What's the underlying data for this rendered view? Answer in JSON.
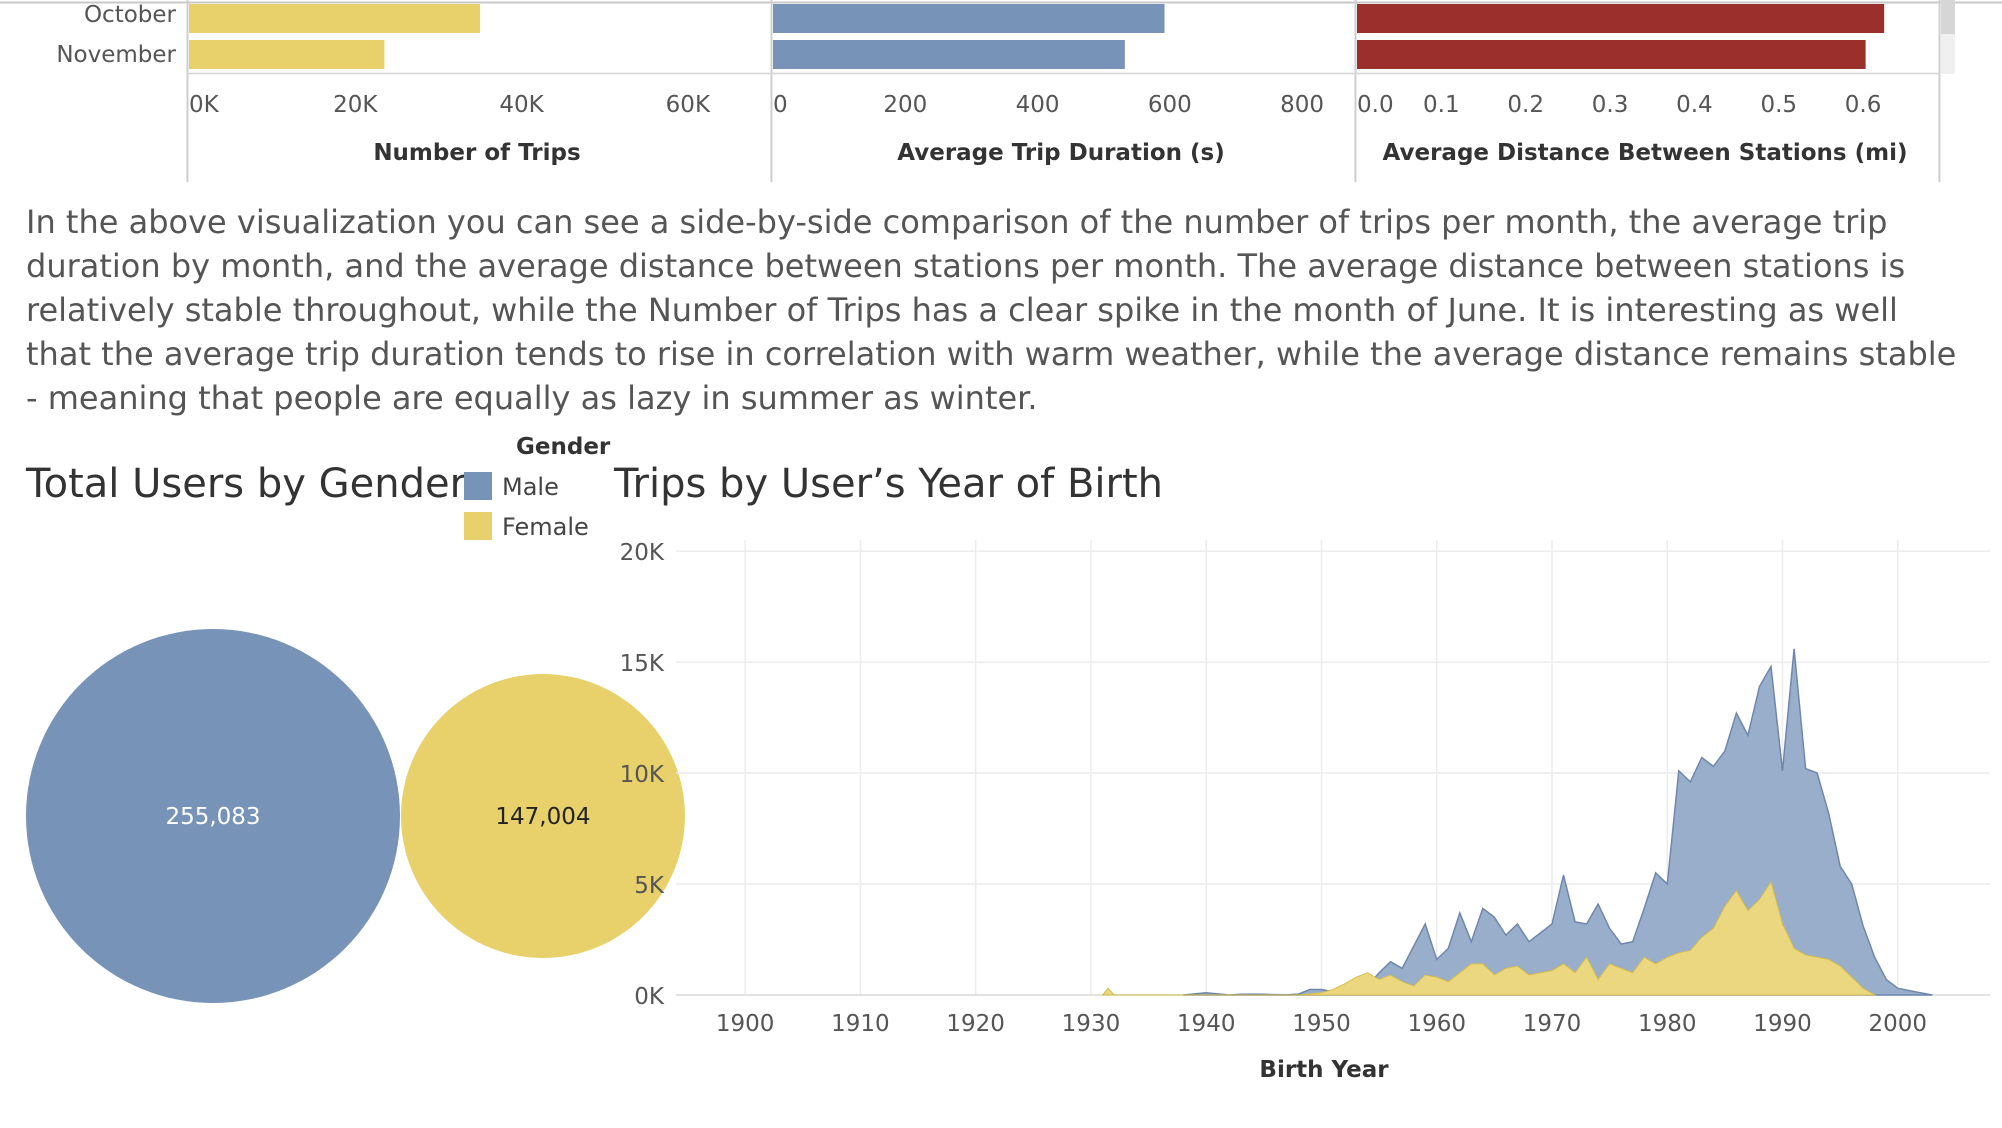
{
  "paragraph": "In the above visualization you can see a side-by-side comparison of the number of trips per month, the average trip duration by month, and the average distance between stations per month. The average distance between stations is relatively stable throughout, while the Number of Trips has a clear spike in the month of June. It is interesting as well that the average trip duration tends to rise in correlation with warm weather, while the average distance remains stable - meaning that people are equally as lazy in summer as winter.",
  "colors": {
    "male": "#7893B8",
    "female": "#E8D06B",
    "distance": "#9B2F2B",
    "area_male": "#98AECB",
    "area_female": "#EBD77F"
  },
  "legend": {
    "title": "Gender",
    "items": [
      "Male",
      "Female"
    ]
  },
  "chart_data": [
    {
      "type": "bar",
      "categories": [
        "October",
        "November"
      ],
      "values": [
        35000,
        23500
      ],
      "xlabel": "Number of Trips",
      "xlim": [
        0,
        70000
      ],
      "ticks": [
        "0K",
        "20K",
        "40K",
        "60K"
      ],
      "tick_values": [
        0,
        20000,
        40000,
        60000
      ],
      "grid": false
    },
    {
      "type": "bar",
      "categories": [
        "October",
        "November"
      ],
      "values": [
        592,
        532
      ],
      "xlabel": "Average Trip Duration (s)",
      "xlim": [
        0,
        880
      ],
      "ticks": [
        "0",
        "200",
        "400",
        "600",
        "800"
      ],
      "tick_values": [
        0,
        200,
        400,
        600,
        800
      ],
      "grid": false
    },
    {
      "type": "bar",
      "categories": [
        "October",
        "November"
      ],
      "values": [
        0.625,
        0.603
      ],
      "xlabel": "Average Distance Between Stations (mi)",
      "xlim": [
        0,
        0.69
      ],
      "ticks": [
        "0.0",
        "0.1",
        "0.2",
        "0.3",
        "0.4",
        "0.5",
        "0.6"
      ],
      "tick_values": [
        0,
        0.1,
        0.2,
        0.3,
        0.4,
        0.5,
        0.6
      ],
      "grid": false
    },
    {
      "type": "bubble",
      "title": "Total Users by Gender",
      "labels": [
        "Male",
        "Female"
      ],
      "values": [
        255083,
        147004
      ],
      "value_labels": [
        "255,083",
        "147,004"
      ],
      "legend": "top-right"
    },
    {
      "type": "area",
      "title": "Trips by User’s Year of Birth",
      "xlabel": "Birth Year",
      "xlim": [
        1894,
        2008
      ],
      "ylim": [
        0,
        20500
      ],
      "xticks": [
        "1900",
        "1910",
        "1920",
        "1930",
        "1940",
        "1950",
        "1960",
        "1970",
        "1980",
        "1990",
        "2000"
      ],
      "xtick_values": [
        1900,
        1910,
        1920,
        1930,
        1940,
        1950,
        1960,
        1970,
        1980,
        1990,
        2000
      ],
      "yticks": [
        "0K",
        "5K",
        "10K",
        "15K",
        "20K"
      ],
      "ytick_values": [
        0,
        5000,
        10000,
        15000,
        20000
      ],
      "grid": true,
      "stacked": true,
      "series": [
        {
          "name": "Female",
          "x": [
            1931,
            1931.5,
            1932,
            1948,
            1950,
            1951,
            1952,
            1953,
            1954,
            1955,
            1956,
            1957,
            1958,
            1959,
            1960,
            1961,
            1962,
            1963,
            1964,
            1965,
            1966,
            1967,
            1968,
            1969,
            1970,
            1971,
            1972,
            1973,
            1974,
            1975,
            1976,
            1977,
            1978,
            1979,
            1980,
            1981,
            1982,
            1983,
            1984,
            1985,
            1986,
            1987,
            1988,
            1989,
            1990,
            1991,
            1992,
            1993,
            1994,
            1995,
            1996,
            1997,
            1998
          ],
          "y": [
            0,
            300,
            0,
            0,
            100,
            250,
            500,
            800,
            1000,
            700,
            900,
            600,
            400,
            900,
            800,
            600,
            1000,
            1400,
            1400,
            900,
            1200,
            1300,
            900,
            1000,
            1100,
            1400,
            1000,
            1700,
            700,
            1400,
            1200,
            1000,
            1700,
            1400,
            1700,
            1900,
            2000,
            2600,
            3000,
            4000,
            4700,
            3800,
            4300,
            5100,
            3200,
            2100,
            1800,
            1700,
            1600,
            1300,
            800,
            300,
            0
          ]
        },
        {
          "name": "Male",
          "x": [
            1938,
            1940,
            1941,
            1942,
            1943,
            1944,
            1945,
            1946,
            1947,
            1948,
            1949,
            1950,
            1951,
            1952,
            1953,
            1954,
            1955,
            1956,
            1957,
            1958,
            1959,
            1960,
            1961,
            1962,
            1963,
            1964,
            1965,
            1966,
            1967,
            1968,
            1969,
            1970,
            1971,
            1972,
            1973,
            1974,
            1975,
            1976,
            1977,
            1978,
            1979,
            1980,
            1981,
            1982,
            1983,
            1984,
            1985,
            1986,
            1987,
            1988,
            1989,
            1990,
            1991,
            1992,
            1993,
            1994,
            1995,
            1996,
            1997,
            1998,
            1999,
            2000,
            2001,
            2002,
            2003
          ],
          "y": [
            0,
            100,
            50,
            0,
            30,
            40,
            30,
            20,
            10,
            40,
            250,
            250,
            150,
            300,
            600,
            400,
            1000,
            1500,
            1200,
            2200,
            3200,
            1600,
            2100,
            3700,
            2400,
            3900,
            3500,
            2700,
            3200,
            2400,
            2800,
            3200,
            5400,
            3300,
            3200,
            4100,
            3000,
            2300,
            2400,
            3900,
            5500,
            5000,
            10100,
            9600,
            10700,
            10300,
            11000,
            12700,
            11700,
            13900,
            14800,
            10100,
            15600,
            10200,
            10000,
            8200,
            5800,
            5000,
            3100,
            1700,
            700,
            300,
            200,
            100,
            0
          ]
        }
      ]
    }
  ]
}
